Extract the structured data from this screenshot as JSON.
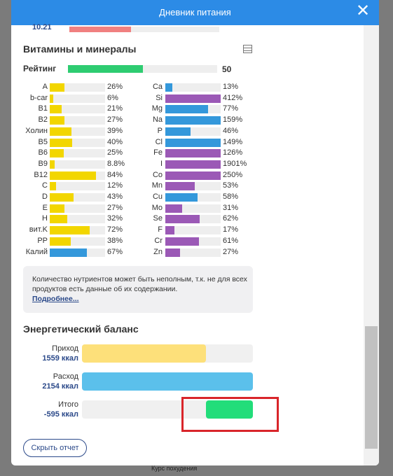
{
  "header": {
    "title": "Дневник питания"
  },
  "background": {
    "course": "Курс похудения"
  },
  "scrolled_value": "10.21",
  "vitamins": {
    "title": "Витамины и минералы",
    "rating_label": "Рейтинг",
    "rating": 50,
    "left": [
      {
        "name": "A",
        "value": 26,
        "label": "26%",
        "color": "#f2d600"
      },
      {
        "name": "b-car",
        "value": 6,
        "label": "6%",
        "color": "#f2d600"
      },
      {
        "name": "B1",
        "value": 21,
        "label": "21%",
        "color": "#f2d600"
      },
      {
        "name": "B2",
        "value": 27,
        "label": "27%",
        "color": "#f2d600"
      },
      {
        "name": "Холин",
        "value": 39,
        "label": "39%",
        "color": "#f2d600"
      },
      {
        "name": "B5",
        "value": 40,
        "label": "40%",
        "color": "#f2d600"
      },
      {
        "name": "B6",
        "value": 25,
        "label": "25%",
        "color": "#f2d600"
      },
      {
        "name": "B9",
        "value": 8.8,
        "label": "8.8%",
        "color": "#f2d600"
      },
      {
        "name": "B12",
        "value": 84,
        "label": "84%",
        "color": "#f2d600"
      },
      {
        "name": "C",
        "value": 12,
        "label": "12%",
        "color": "#f2d600"
      },
      {
        "name": "D",
        "value": 43,
        "label": "43%",
        "color": "#f2d600"
      },
      {
        "name": "E",
        "value": 27,
        "label": "27%",
        "color": "#f2d600"
      },
      {
        "name": "H",
        "value": 32,
        "label": "32%",
        "color": "#f2d600"
      },
      {
        "name": "вит.K",
        "value": 72,
        "label": "72%",
        "color": "#f2d600"
      },
      {
        "name": "PP",
        "value": 38,
        "label": "38%",
        "color": "#f2d600"
      },
      {
        "name": "Калий",
        "value": 67,
        "label": "67%",
        "color": "#3498db"
      }
    ],
    "right": [
      {
        "name": "Ca",
        "value": 13,
        "label": "13%",
        "color": "#3498db"
      },
      {
        "name": "Si",
        "value": 412,
        "label": "412%",
        "color": "#9b59b6"
      },
      {
        "name": "Mg",
        "value": 77,
        "label": "77%",
        "color": "#3498db"
      },
      {
        "name": "Na",
        "value": 159,
        "label": "159%",
        "color": "#3498db"
      },
      {
        "name": "P",
        "value": 46,
        "label": "46%",
        "color": "#3498db"
      },
      {
        "name": "Cl",
        "value": 149,
        "label": "149%",
        "color": "#3498db"
      },
      {
        "name": "Fe",
        "value": 126,
        "label": "126%",
        "color": "#9b59b6"
      },
      {
        "name": "I",
        "value": 1901,
        "label": "1901%",
        "color": "#9b59b6"
      },
      {
        "name": "Co",
        "value": 250,
        "label": "250%",
        "color": "#9b59b6"
      },
      {
        "name": "Mn",
        "value": 53,
        "label": "53%",
        "color": "#9b59b6"
      },
      {
        "name": "Cu",
        "value": 58,
        "label": "58%",
        "color": "#3498db"
      },
      {
        "name": "Mo",
        "value": 31,
        "label": "31%",
        "color": "#9b59b6"
      },
      {
        "name": "Se",
        "value": 62,
        "label": "62%",
        "color": "#9b59b6"
      },
      {
        "name": "F",
        "value": 17,
        "label": "17%",
        "color": "#9b59b6"
      },
      {
        "name": "Cr",
        "value": 61,
        "label": "61%",
        "color": "#9b59b6"
      },
      {
        "name": "Zn",
        "value": 27,
        "label": "27%",
        "color": "#9b59b6"
      }
    ],
    "note": "Количество нутриентов может быть неполным, т.к. не для всех продуктов есть данные об их содержании.",
    "note_link": "Подробнее..."
  },
  "energy": {
    "title": "Энергетический баланс",
    "rows": [
      {
        "name": "Приход",
        "value": 1559,
        "label": "1559 ккал",
        "color": "#fde07a"
      },
      {
        "name": "Расход",
        "value": 2154,
        "label": "2154 ккал",
        "color": "#5bc0eb"
      },
      {
        "name": "Итого",
        "value": -595,
        "label": "-595 ккал",
        "color": "#22dd7a"
      }
    ]
  },
  "button": "Скрыть отчет"
}
